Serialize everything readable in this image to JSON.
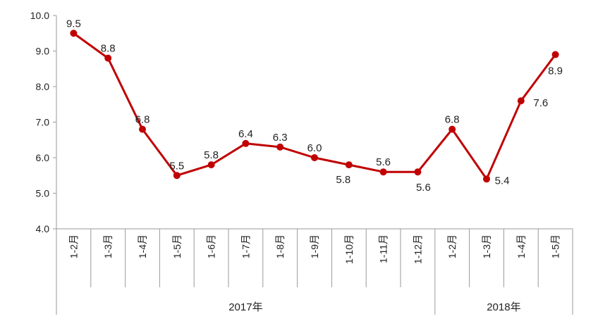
{
  "chart_data": {
    "type": "line",
    "title": "",
    "xlabel": "",
    "ylabel": "",
    "ylim": [
      4.0,
      10.0
    ],
    "yticks": [
      "4.0",
      "5.0",
      "6.0",
      "7.0",
      "8.0",
      "9.0",
      "10.0"
    ],
    "grid": false,
    "categories": [
      "1-2月",
      "1-3月",
      "1-4月",
      "1-5月",
      "1-6月",
      "1-7月",
      "1-8月",
      "1-9月",
      "1-10月",
      "1-11月",
      "1-12月",
      "1-2月",
      "1-3月",
      "1-4月",
      "1-5月"
    ],
    "groups": [
      {
        "label": "2017年",
        "count": 11
      },
      {
        "label": "2018年",
        "count": 4
      }
    ],
    "series": [
      {
        "color": "#c00000",
        "values": [
          9.5,
          8.8,
          6.8,
          5.5,
          5.8,
          6.4,
          6.3,
          6.0,
          5.8,
          5.6,
          5.6,
          6.8,
          5.4,
          7.6,
          8.9
        ],
        "labels": [
          "9.5",
          "8.8",
          "6.8",
          "5.5",
          "5.8",
          "6.4",
          "6.3",
          "6.0",
          "5.8",
          "5.6",
          "5.6",
          "6.8",
          "5.4",
          "7.6",
          "8.9"
        ]
      }
    ]
  }
}
